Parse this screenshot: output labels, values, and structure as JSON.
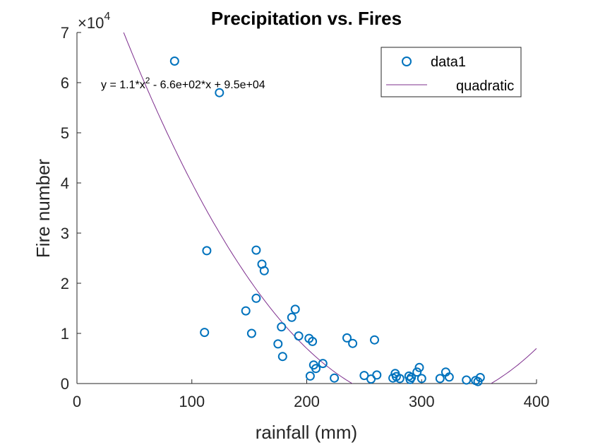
{
  "chart_data": {
    "type": "scatter",
    "title": "Precipitation vs. Fires",
    "xlabel": "rainfall (mm)",
    "ylabel": "Fire number",
    "xlim": [
      0,
      400
    ],
    "ylim": [
      0,
      70000
    ],
    "xticks": [
      0,
      100,
      200,
      300,
      400
    ],
    "yticks": [
      0,
      10000,
      20000,
      30000,
      40000,
      50000,
      60000,
      70000
    ],
    "ytick_labels": [
      "0",
      "1",
      "2",
      "3",
      "4",
      "5",
      "6",
      "7"
    ],
    "y_multiplier": {
      "base": "×10",
      "exponent": "4"
    },
    "grid": false,
    "legend_position": "top-right",
    "annotation": {
      "prefix": "y = 1.1*x",
      "sup": "2",
      "suffix": " - 6.6e+02*x + 9.5e+04"
    },
    "series": [
      {
        "name": "data1",
        "kind": "scatter",
        "color": "#0072BD",
        "points": [
          [
            85,
            64300
          ],
          [
            124,
            58000
          ],
          [
            113,
            26500
          ],
          [
            111,
            10200
          ],
          [
            156,
            26600
          ],
          [
            161,
            23800
          ],
          [
            163,
            22500
          ],
          [
            156,
            17000
          ],
          [
            147,
            14500
          ],
          [
            152,
            10000
          ],
          [
            178,
            11300
          ],
          [
            190,
            14800
          ],
          [
            187,
            13200
          ],
          [
            175,
            7900
          ],
          [
            179,
            5400
          ],
          [
            193,
            9500
          ],
          [
            202,
            9000
          ],
          [
            205,
            8400
          ],
          [
            203,
            1500
          ],
          [
            206,
            3700
          ],
          [
            208,
            3000
          ],
          [
            214,
            4000
          ],
          [
            224,
            1100
          ],
          [
            235,
            9100
          ],
          [
            240,
            8000
          ],
          [
            259,
            8700
          ],
          [
            250,
            1600
          ],
          [
            256,
            900
          ],
          [
            261,
            1700
          ],
          [
            275,
            1100
          ],
          [
            277,
            2000
          ],
          [
            278,
            1400
          ],
          [
            281,
            1000
          ],
          [
            289,
            1500
          ],
          [
            290,
            800
          ],
          [
            291,
            1200
          ],
          [
            296,
            2300
          ],
          [
            298,
            3200
          ],
          [
            300,
            1000
          ],
          [
            316,
            1000
          ],
          [
            321,
            2300
          ],
          [
            324,
            1300
          ],
          [
            339,
            700
          ],
          [
            347,
            600
          ],
          [
            349,
            400
          ],
          [
            351,
            1200
          ]
        ]
      },
      {
        "name": "quadratic",
        "kind": "line",
        "color": "#7E2F8E",
        "coefficients": {
          "a": 1.1,
          "b": -660,
          "c": 95000
        }
      }
    ]
  }
}
